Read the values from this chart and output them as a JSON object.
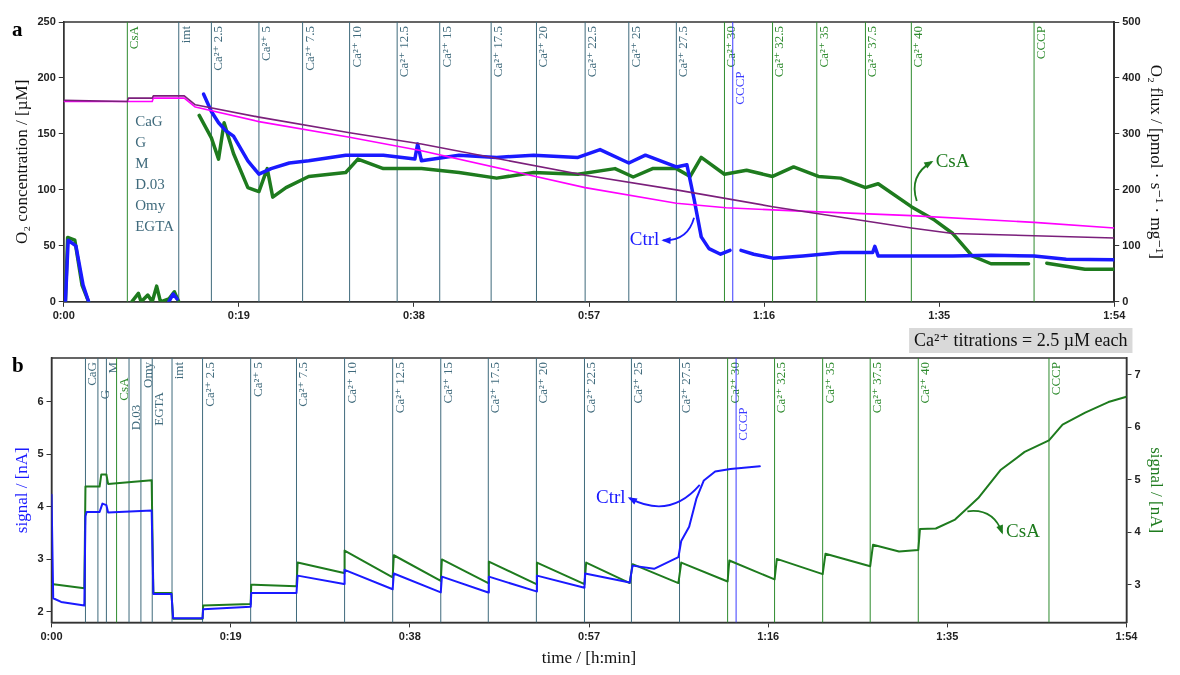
{
  "chart_data": [
    {
      "type": "line",
      "title": "a",
      "ylabel": "O₂ concentration / [µM]",
      "y2label": "O₂ flux / [pmol · s⁻¹ · mg⁻¹]",
      "marker": "none",
      "xlim": [
        0,
        1.9
      ],
      "xticks": [
        {
          "value": 0,
          "label": "0:00"
        },
        {
          "value": 0.3167,
          "label": "0:19"
        },
        {
          "value": 0.6333,
          "label": "0:38"
        },
        {
          "value": 0.95,
          "label": "0:57"
        },
        {
          "value": 1.2667,
          "label": "1:16"
        },
        {
          "value": 1.5833,
          "label": "1:35"
        },
        {
          "value": 1.9,
          "label": "1:54"
        }
      ],
      "ylim": [
        0,
        250
      ],
      "yticks": [
        0,
        50,
        100,
        150,
        200,
        250
      ],
      "y2lim": [
        0,
        500
      ],
      "y2ticks": [
        0,
        100,
        200,
        300,
        400,
        500
      ],
      "series": [
        {
          "color": "#7b1f7b",
          "x": [
            0,
            0.115,
            0.117,
            0.16,
            0.162,
            0.218,
            0.238,
            0.353,
            0.517,
            0.647,
            0.943,
            1.108,
            1.282,
            1.533,
            1.608,
            1.755,
            1.9
          ],
          "values": [
            180,
            179,
            182,
            182,
            184,
            184,
            176,
            165,
            151,
            141,
            113,
            100,
            85,
            66,
            61,
            59,
            57
          ]
        },
        {
          "color": "#ff00ff",
          "x": [
            0,
            0.16,
            0.162,
            0.218,
            0.238,
            0.353,
            0.517,
            0.647,
            0.943,
            1.108,
            1.198,
            1.333,
            1.533,
            1.755,
            1.9
          ],
          "values": [
            179,
            179,
            182,
            182,
            174,
            161,
            147,
            135,
            102,
            88,
            84,
            81,
            77,
            71,
            66
          ]
        },
        {
          "name": "Ctrl",
          "color": "#1a1aff",
          "axis": "y2",
          "x": [
            0.003,
            0.008,
            0.022,
            0.035,
            0.045,
            0.1,
            0.19,
            0.198,
            0.205,
            0.23,
            0.253,
            0.267,
            0.28,
            0.293,
            0.307,
            0.333,
            0.353,
            0.375,
            0.408,
            0.443,
            0.51,
            0.578,
            0.635,
            0.64,
            0.647,
            0.715,
            0.783,
            0.85,
            0.93,
            0.97,
            1.022,
            1.052,
            1.108,
            1.127,
            1.14,
            1.153,
            1.167,
            1.188,
            1.205,
            1.215,
            1.225,
            1.248,
            1.283,
            1.337,
            1.405,
            1.463,
            1.467,
            1.473,
            1.54,
            1.608,
            1.677,
            1.755,
            1.813,
            1.9
          ],
          "values": [
            0,
            110,
            100,
            30,
            0,
            null,
            0,
            14,
            5,
            null,
            371,
            340,
            320,
            306,
            296,
            252,
            228,
            238,
            248,
            252,
            262,
            262,
            255,
            282,
            252,
            262,
            258,
            262,
            258,
            272,
            248,
            262,
            241,
            245,
            184,
            116,
            95,
            85,
            92,
            null,
            92,
            85,
            78,
            82,
            88,
            88,
            99,
            82,
            82,
            82,
            83,
            82,
            76,
            75
          ]
        },
        {
          "name": "CsA",
          "color": "#1e7b1e",
          "axis": "y2",
          "x": [
            0.003,
            0.007,
            0.02,
            0.033,
            0.045,
            0.08,
            0.123,
            0.135,
            0.14,
            0.152,
            0.16,
            0.168,
            0.175,
            0.19,
            0.2,
            0.208,
            0.23,
            0.245,
            0.267,
            0.28,
            0.29,
            0.307,
            0.333,
            0.353,
            0.368,
            0.378,
            0.402,
            0.443,
            0.51,
            0.532,
            0.578,
            0.647,
            0.715,
            0.783,
            0.85,
            0.93,
            0.997,
            1.03,
            1.065,
            1.108,
            1.133,
            1.153,
            1.195,
            1.235,
            1.282,
            1.32,
            1.365,
            1.405,
            1.45,
            1.473,
            1.533,
            1.575,
            1.608,
            1.643,
            1.677,
            1.745,
            1.76,
            1.778,
            1.847,
            1.9
          ],
          "values": [
            0,
            115,
            110,
            30,
            0,
            null,
            0,
            15,
            0,
            12,
            0,
            28,
            0,
            5,
            18,
            0,
            null,
            333,
            293,
            255,
            320,
            265,
            204,
            197,
            238,
            187,
            204,
            224,
            231,
            255,
            238,
            238,
            231,
            221,
            231,
            228,
            238,
            223,
            238,
            238,
            224,
            258,
            228,
            235,
            224,
            241,
            224,
            221,
            204,
            211,
            170,
            146,
            122,
            82,
            68,
            68,
            null,
            69,
            58,
            58
          ]
        }
      ],
      "ref_lines": [
        {
          "axis": "x",
          "value": 0.115,
          "label": "CsA",
          "color": "#2e8b2e"
        },
        {
          "axis": "x",
          "value": 0.208,
          "label": "imt",
          "color": "#3f6a7c"
        },
        {
          "axis": "x",
          "value": 0.267,
          "label": "Ca²⁺ 2.5",
          "color": "#3f6a7c"
        },
        {
          "axis": "x",
          "value": 0.353,
          "label": "Ca²⁺ 5",
          "color": "#3f6a7c"
        },
        {
          "axis": "x",
          "value": 0.432,
          "label": "Ca²⁺ 7.5",
          "color": "#3f6a7c"
        },
        {
          "axis": "x",
          "value": 0.517,
          "label": "Ca²⁺ 10",
          "color": "#3f6a7c"
        },
        {
          "axis": "x",
          "value": 0.603,
          "label": "Ca²⁺ 12.5",
          "color": "#3f6a7c"
        },
        {
          "axis": "x",
          "value": 0.68,
          "label": "Ca²⁺ 15",
          "color": "#3f6a7c"
        },
        {
          "axis": "x",
          "value": 0.773,
          "label": "Ca²⁺ 17.5",
          "color": "#3f6a7c"
        },
        {
          "axis": "x",
          "value": 0.855,
          "label": "Ca²⁺ 20",
          "color": "#3f6a7c"
        },
        {
          "axis": "x",
          "value": 0.943,
          "label": "Ca²⁺ 22.5",
          "color": "#3f6a7c"
        },
        {
          "axis": "x",
          "value": 1.022,
          "label": "Ca²⁺ 25",
          "color": "#3f6a7c"
        },
        {
          "axis": "x",
          "value": 1.108,
          "label": "Ca²⁺ 27.5",
          "color": "#3f6a7c"
        },
        {
          "axis": "x",
          "value": 1.195,
          "label": "Ca²⁺ 30",
          "color": "#2e8b2e"
        },
        {
          "axis": "x",
          "value": 1.21,
          "label": "CCCP",
          "color": "#3b3bff"
        },
        {
          "axis": "x",
          "value": 1.282,
          "label": "Ca²⁺ 32.5",
          "color": "#2e8b2e"
        },
        {
          "axis": "x",
          "value": 1.362,
          "label": "Ca²⁺ 35",
          "color": "#2e8b2e"
        },
        {
          "axis": "x",
          "value": 1.45,
          "label": "Ca²⁺ 37.5",
          "color": "#2e8b2e"
        },
        {
          "axis": "x",
          "value": 1.533,
          "label": "Ca²⁺ 40",
          "color": "#2e8b2e"
        },
        {
          "axis": "x",
          "value": 1.755,
          "label": "CCCP",
          "color": "#2e8b2e"
        }
      ],
      "annotations": [
        "CaG\nG\nM\nD.03\nOmy\nEGTA"
      ]
    },
    {
      "type": "line",
      "title": "b",
      "xlabel": "time / [h:min]",
      "ylabel": "signal / [nA]",
      "y2label": "signal / [nA]",
      "marker": "none",
      "xlim": [
        0,
        1.9
      ],
      "xticks": [
        {
          "value": 0,
          "label": "0:00"
        },
        {
          "value": 0.3167,
          "label": "0:19"
        },
        {
          "value": 0.6333,
          "label": "0:38"
        },
        {
          "value": 0.95,
          "label": "0:57"
        },
        {
          "value": 1.2667,
          "label": "1:16"
        },
        {
          "value": 1.5833,
          "label": "1:35"
        },
        {
          "value": 1.9,
          "label": "1:54"
        }
      ],
      "ylim": [
        1.8,
        6.83
      ],
      "yticks": [
        2,
        3,
        4,
        5,
        6
      ],
      "y2lim": [
        2.28,
        7.32
      ],
      "y2ticks": [
        3,
        4,
        5,
        6,
        7
      ],
      "series": [
        {
          "name": "Ctrl",
          "color": "#1a1aff",
          "x": [
            0,
            0.003,
            0.017,
            0.058,
            0.06,
            0.062,
            0.085,
            0.09,
            0.097,
            0.1,
            0.177,
            0.18,
            0.212,
            0.215,
            0.267,
            0.268,
            0.352,
            0.353,
            0.433,
            0.435,
            0.517,
            0.518,
            0.603,
            0.605,
            0.688,
            0.69,
            0.772,
            0.773,
            0.857,
            0.858,
            0.942,
            0.943,
            1.022,
            1.027,
            1.065,
            1.108,
            1.113,
            1.127,
            1.14,
            1.153,
            1.173,
            1.2,
            1.252
          ],
          "values": [
            4.23,
            2.26,
            2.19,
            2.12,
            3.82,
            3.9,
            3.9,
            4.06,
            4.03,
            3.89,
            3.93,
            2.34,
            2.34,
            1.88,
            1.88,
            2.05,
            2.1,
            2.36,
            2.36,
            2.69,
            2.53,
            2.8,
            2.43,
            2.73,
            2.37,
            2.67,
            2.37,
            2.67,
            2.39,
            2.69,
            2.46,
            2.73,
            2.56,
            2.88,
            2.82,
            3.04,
            3.35,
            3.62,
            4.16,
            4.5,
            4.67,
            4.72,
            4.77
          ]
        },
        {
          "name": "CsA",
          "color": "#1e7b1e",
          "axis": "y2",
          "x": [
            0,
            0.058,
            0.06,
            0.085,
            0.088,
            0.097,
            0.1,
            0.177,
            0.18,
            0.212,
            0.215,
            0.267,
            0.268,
            0.352,
            0.353,
            0.433,
            0.435,
            0.517,
            0.518,
            0.603,
            0.605,
            0.688,
            0.69,
            0.772,
            0.773,
            0.857,
            0.858,
            0.942,
            0.945,
            1.022,
            1.027,
            1.108,
            1.113,
            1.195,
            1.198,
            1.278,
            1.282,
            1.363,
            1.368,
            1.447,
            1.452,
            1.498,
            1.532,
            1.535,
            1.563,
            1.597,
            1.638,
            1.678,
            1.72,
            1.763,
            1.787,
            1.827,
            1.868,
            1.9
          ],
          "values": [
            3.01,
            2.93,
            4.87,
            4.87,
            5.1,
            5.1,
            4.92,
            4.99,
            2.84,
            2.84,
            2.35,
            2.35,
            2.6,
            2.63,
            3.0,
            2.97,
            3.42,
            3.22,
            3.65,
            3.14,
            3.56,
            3.07,
            3.48,
            3.03,
            3.44,
            3.01,
            3.42,
            3.01,
            3.42,
            3.03,
            3.39,
            3.03,
            3.42,
            3.06,
            3.46,
            3.1,
            3.49,
            3.2,
            3.59,
            3.35,
            3.76,
            3.63,
            3.66,
            4.06,
            4.07,
            4.24,
            4.65,
            5.19,
            5.53,
            5.75,
            6.05,
            6.28,
            6.48,
            6.58
          ]
        }
      ],
      "ref_lines": [
        {
          "axis": "x",
          "value": 0.06,
          "label": "CaG",
          "color": "#3f6a7c"
        },
        {
          "axis": "x",
          "value": 0.082,
          "label": "G",
          "color": "#3f6a7c"
        },
        {
          "axis": "x",
          "value": 0.097,
          "label": "M",
          "color": "#3f6a7c"
        },
        {
          "axis": "x",
          "value": 0.115,
          "label": "CsA",
          "color": "#2e8b2e"
        },
        {
          "axis": "x",
          "value": 0.137,
          "label": "D.03",
          "color": "#3f6a7c"
        },
        {
          "axis": "x",
          "value": 0.158,
          "label": "Omy",
          "color": "#3f6a7c"
        },
        {
          "axis": "x",
          "value": 0.178,
          "label": "EGTA",
          "color": "#3f6a7c"
        },
        {
          "axis": "x",
          "value": 0.213,
          "label": "imt",
          "color": "#3f6a7c"
        },
        {
          "axis": "x",
          "value": 0.267,
          "label": "Ca²⁺ 2.5",
          "color": "#3f6a7c"
        },
        {
          "axis": "x",
          "value": 0.352,
          "label": "Ca²⁺ 5",
          "color": "#3f6a7c"
        },
        {
          "axis": "x",
          "value": 0.433,
          "label": "Ca²⁺ 7.5",
          "color": "#3f6a7c"
        },
        {
          "axis": "x",
          "value": 0.518,
          "label": "Ca²⁺ 10",
          "color": "#3f6a7c"
        },
        {
          "axis": "x",
          "value": 0.603,
          "label": "Ca²⁺ 12.5",
          "color": "#3f6a7c"
        },
        {
          "axis": "x",
          "value": 0.688,
          "label": "Ca²⁺ 15",
          "color": "#3f6a7c"
        },
        {
          "axis": "x",
          "value": 0.772,
          "label": "Ca²⁺ 17.5",
          "color": "#3f6a7c"
        },
        {
          "axis": "x",
          "value": 0.857,
          "label": "Ca²⁺ 20",
          "color": "#3f6a7c"
        },
        {
          "axis": "x",
          "value": 0.942,
          "label": "Ca²⁺ 22.5",
          "color": "#3f6a7c"
        },
        {
          "axis": "x",
          "value": 1.025,
          "label": "Ca²⁺ 25",
          "color": "#3f6a7c"
        },
        {
          "axis": "x",
          "value": 1.11,
          "label": "Ca²⁺ 27.5",
          "color": "#3f6a7c"
        },
        {
          "axis": "x",
          "value": 1.195,
          "label": "Ca²⁺ 30",
          "color": "#2e8b2e"
        },
        {
          "axis": "x",
          "value": 1.21,
          "label": "CCCP",
          "color": "#3b3bff"
        },
        {
          "axis": "x",
          "value": 1.278,
          "label": "Ca²⁺ 32.5",
          "color": "#2e8b2e"
        },
        {
          "axis": "x",
          "value": 1.363,
          "label": "Ca²⁺ 35",
          "color": "#2e8b2e"
        },
        {
          "axis": "x",
          "value": 1.447,
          "label": "Ca²⁺ 37.5",
          "color": "#2e8b2e"
        },
        {
          "axis": "x",
          "value": 1.532,
          "label": "Ca²⁺ 40",
          "color": "#2e8b2e"
        },
        {
          "axis": "x",
          "value": 1.763,
          "label": "CCCP",
          "color": "#2e8b2e"
        }
      ],
      "annotations": [
        "Ca²⁺ titrations = 2.5 µM each"
      ]
    }
  ]
}
